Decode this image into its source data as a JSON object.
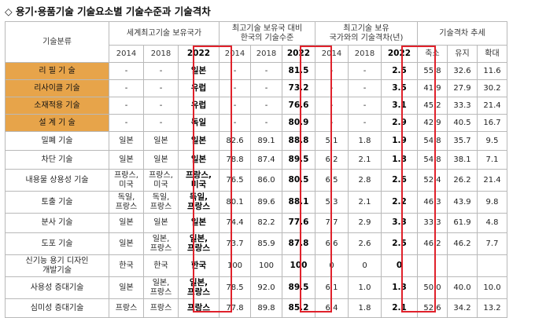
{
  "title": "◇ 용기·용품기술 기술요소별 기술수준과 기술격차",
  "headers": {
    "category": "기술분류",
    "group_country": "세계최고기술 보유국가",
    "group_level_line1": "최고기술 보유국 대비",
    "group_level_line2": "한국의 기술수준",
    "group_gap_line1": "최고기술 보유",
    "group_gap_line2": "국가와의 기술격차(년)",
    "group_trend": "기술격차 추세",
    "years": [
      "2014",
      "2018",
      "2022"
    ],
    "trend": [
      "축소",
      "유지",
      "확대"
    ]
  },
  "rows": [
    {
      "cat": "리 필 기 술",
      "c14": "-",
      "c18": "-",
      "c22": "일본",
      "l14": "-",
      "l18": "-",
      "l22": "81.5",
      "g14": "-",
      "g18": "-",
      "g22": "2.5",
      "t1": "55.8",
      "t2": "32.6",
      "t3": "11.6"
    },
    {
      "cat": "리사이클 기술",
      "c14": "-",
      "c18": "-",
      "c22": "유럽",
      "l14": "-",
      "l18": "-",
      "l22": "73.2",
      "g14": "-",
      "g18": "-",
      "g22": "3.5",
      "t1": "41.9",
      "t2": "27.9",
      "t3": "30.2"
    },
    {
      "cat": "소재적용 기술",
      "c14": "-",
      "c18": "-",
      "c22": "유럽",
      "l14": "-",
      "l18": "-",
      "l22": "76.6",
      "g14": "-",
      "g18": "-",
      "g22": "3.1",
      "t1": "45.2",
      "t2": "33.3",
      "t3": "21.4"
    },
    {
      "cat": "설 계 기 술",
      "c14": "-",
      "c18": "-",
      "c22": "독일",
      "l14": "-",
      "l18": "-",
      "l22": "80.9",
      "g14": "-",
      "g18": "-",
      "g22": "2.9",
      "t1": "42.9",
      "t2": "40.5",
      "t3": "16.7"
    },
    {
      "cat": "밀폐 기술",
      "c14": "일본",
      "c18": "일본",
      "c22": "일본",
      "l14": "82.6",
      "l18": "89.1",
      "l22": "88.8",
      "g14": "5.1",
      "g18": "1.8",
      "g22": "1.9",
      "t1": "54.8",
      "t2": "35.7",
      "t3": "9.5"
    },
    {
      "cat": "차단 기술",
      "c14": "일본",
      "c18": "일본",
      "c22": "일본",
      "l14": "78.8",
      "l18": "87.4",
      "l22": "89.5",
      "g14": "6.2",
      "g18": "2.1",
      "g22": "1.8",
      "t1": "54.8",
      "t2": "38.1",
      "t3": "7.1"
    },
    {
      "cat": "내용물 상용성 기술",
      "c14a": "프랑스,",
      "c14b": "미국",
      "c18a": "프랑스,",
      "c18b": "미국",
      "c22a": "프랑스,",
      "c22b": "미국",
      "l14": "76.5",
      "l18": "86.0",
      "l22": "80.5",
      "g14": "6.5",
      "g18": "2.8",
      "g22": "2.6",
      "t1": "52.4",
      "t2": "26.2",
      "t3": "21.4"
    },
    {
      "cat": "토출 기술",
      "c14a": "독일,",
      "c14b": "프랑스",
      "c18a": "독일,",
      "c18b": "프랑스",
      "c22a": "독일,",
      "c22b": "프랑스",
      "l14": "80.1",
      "l18": "89.6",
      "l22": "88.1",
      "g14": "5.3",
      "g18": "2.1",
      "g22": "2.2",
      "t1": "46.3",
      "t2": "43.9",
      "t3": "9.8"
    },
    {
      "cat": "분사 기술",
      "c14": "일본",
      "c18": "일본",
      "c22": "일본",
      "l14": "74.4",
      "l18": "82.2",
      "l22": "77.6",
      "g14": "7.7",
      "g18": "2.9",
      "g22": "3.3",
      "t1": "33.3",
      "t2": "61.9",
      "t3": "4.8"
    },
    {
      "cat": "도포 기술",
      "c14": "일본",
      "c18a": "일본,",
      "c18b": "프랑스",
      "c22a": "일본,",
      "c22b": "프랑스",
      "l14": "73.7",
      "l18": "85.9",
      "l22": "87.8",
      "g14": "6.6",
      "g18": "2.6",
      "g22": "2.5",
      "t1": "46.2",
      "t2": "46.2",
      "t3": "7.7"
    },
    {
      "cat_a": "신기능 용기 디자인",
      "cat_b": "개발기술",
      "c14": "한국",
      "c18": "한국",
      "c22": "한국",
      "l14": "100",
      "l18": "100",
      "l22": "100",
      "g14": "0",
      "g18": "0",
      "g22": "0",
      "t1": "",
      "t2": "",
      "t3": ""
    },
    {
      "cat": "사용성 증대기술",
      "c14": "일본",
      "c18a": "일본,",
      "c18b": "프랑스",
      "c22a": "일본,",
      "c22b": "프랑스",
      "l14": "78.5",
      "l18": "92.0",
      "l22": "89.5",
      "g14": "6.1",
      "g18": "1.0",
      "g22": "1.3",
      "t1": "50.0",
      "t2": "40.0",
      "t3": "10.0"
    },
    {
      "cat": "심미성 증대기술",
      "c14": "프랑스",
      "c18": "프랑스",
      "c22": "프랑스",
      "l14": "77.8",
      "l18": "89.8",
      "l22": "85.2",
      "g14": "6.4",
      "g18": "1.8",
      "g22": "2.1",
      "t1": "52.6",
      "t2": "34.2",
      "t3": "13.2"
    }
  ],
  "colors": {
    "highlight": "#e7a44a",
    "border_red": "#e0212b",
    "grid": "#b9b9b9"
  }
}
